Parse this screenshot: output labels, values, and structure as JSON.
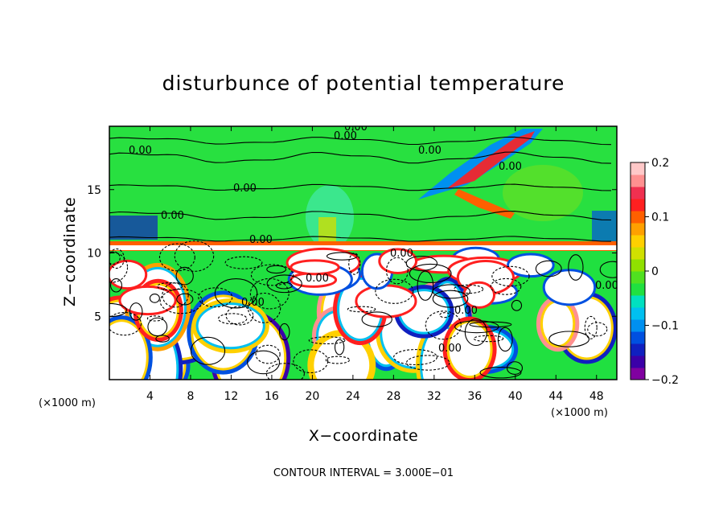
{
  "chart_data": {
    "type": "heatmap",
    "title": "disturbunce of potential temperature",
    "xlabel": "X−coordinate",
    "ylabel": "Z−coordinate",
    "x_unit": "(×1000 m)",
    "x_unit_right": "(×1000 m)",
    "footer": "CONTOUR INTERVAL = 3.000E−01",
    "xlim": [
      0,
      50
    ],
    "ylim": [
      0,
      20
    ],
    "x_ticks": [
      4,
      8,
      12,
      16,
      20,
      24,
      28,
      32,
      36,
      40,
      44,
      48
    ],
    "y_ticks": [
      5,
      10,
      15
    ],
    "colorbar": {
      "range": [
        -0.2,
        0.2
      ],
      "ticks": [
        0.2,
        0.1,
        0,
        -0.1,
        -0.2
      ],
      "tick_labels": [
        "0.2",
        "0.1",
        "0",
        "−0.1",
        "−0.2"
      ],
      "colors": [
        "#8000a0",
        "#3b00a8",
        "#1020c0",
        "#0050e0",
        "#0090f0",
        "#00c0f0",
        "#00e0c0",
        "#20e040",
        "#50e020",
        "#90e000",
        "#d0e000",
        "#ffd000",
        "#ffa000",
        "#ff6000",
        "#ff2020",
        "#f03050",
        "#ff9090",
        "#ffc8c8"
      ]
    },
    "contour_labels": [
      "0.00",
      "0.00",
      "0.00",
      "0.00",
      "0.00",
      "0.00",
      "0.00",
      "0.00",
      "0.00",
      "0.00",
      "0.00",
      "0.00",
      "0.00",
      "0.00"
    ],
    "grid": false,
    "legend": "colorbar-right"
  }
}
